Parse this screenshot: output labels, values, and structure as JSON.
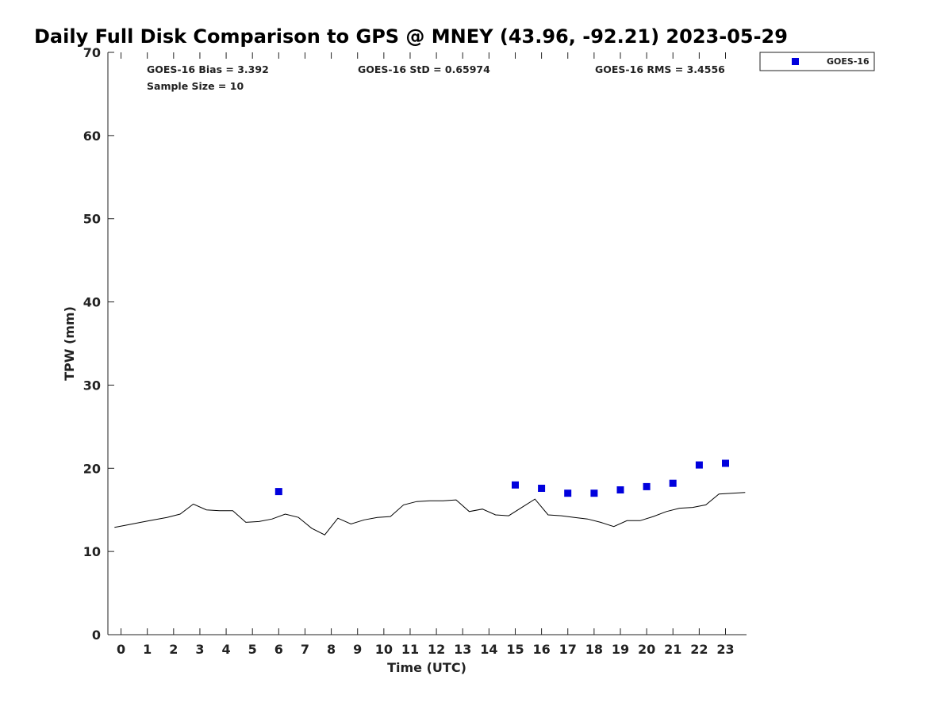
{
  "chart_data": {
    "type": "scatter",
    "title": "Daily Full Disk Comparison to GPS @ MNEY (43.96, -92.21) 2023-05-29",
    "xlabel": "Time (UTC)",
    "ylabel": "TPW (mm)",
    "xlim": [
      -0.5,
      23.8
    ],
    "ylim": [
      0,
      70
    ],
    "x_ticks": [
      "0",
      "1",
      "2",
      "3",
      "4",
      "5",
      "6",
      "7",
      "8",
      "9",
      "10",
      "11",
      "12",
      "13",
      "14",
      "15",
      "16",
      "17",
      "18",
      "19",
      "20",
      "21",
      "22",
      "23"
    ],
    "y_ticks": [
      "0",
      "10",
      "20",
      "30",
      "40",
      "50",
      "60",
      "70"
    ],
    "grid": false,
    "legend_position": "outside-top-right",
    "stats": {
      "bias": "GOES-16 Bias = 3.392",
      "std": "GOES-16 StD = 0.65974",
      "rms": "GOES-16 RMS = 3.4556",
      "sample": "Sample Size = 10"
    },
    "series": [
      {
        "name": "GOES-16",
        "type": "scatter",
        "color": "#0000dd",
        "x": [
          6,
          15,
          16,
          17,
          18,
          19,
          20,
          21,
          22,
          23
        ],
        "y": [
          17.2,
          18.0,
          17.6,
          17.0,
          17.0,
          17.4,
          17.8,
          18.2,
          20.4,
          20.6
        ]
      },
      {
        "type": "line",
        "color": "#000000",
        "x": [
          -0.25,
          0.25,
          0.75,
          1.25,
          1.75,
          2.25,
          2.75,
          3.25,
          3.75,
          4.25,
          4.75,
          5.25,
          5.75,
          6.25,
          6.75,
          7.25,
          7.75,
          8.25,
          8.75,
          9.25,
          9.75,
          10.25,
          10.75,
          11.25,
          11.75,
          12.25,
          12.75,
          13.25,
          13.75,
          14.25,
          14.75,
          15.25,
          15.75,
          16.25,
          16.75,
          17.25,
          17.75,
          18.25,
          18.75,
          19.25,
          19.75,
          20.25,
          20.75,
          21.25,
          21.75,
          22.25,
          22.75,
          23.25,
          23.75
        ],
        "y": [
          12.9,
          13.2,
          13.5,
          13.8,
          14.1,
          14.5,
          15.7,
          15.0,
          14.9,
          14.9,
          13.5,
          13.6,
          13.9,
          14.5,
          14.1,
          12.8,
          12.0,
          14.0,
          13.3,
          13.8,
          14.1,
          14.2,
          15.6,
          16.0,
          16.1,
          16.1,
          16.2,
          14.8,
          15.1,
          14.4,
          14.3,
          15.3,
          16.3,
          14.4,
          14.3,
          14.1,
          13.9,
          13.5,
          13.0,
          13.7,
          13.7,
          14.2,
          14.8,
          15.2,
          15.3,
          15.6,
          16.9,
          17.0,
          17.1
        ]
      }
    ]
  }
}
